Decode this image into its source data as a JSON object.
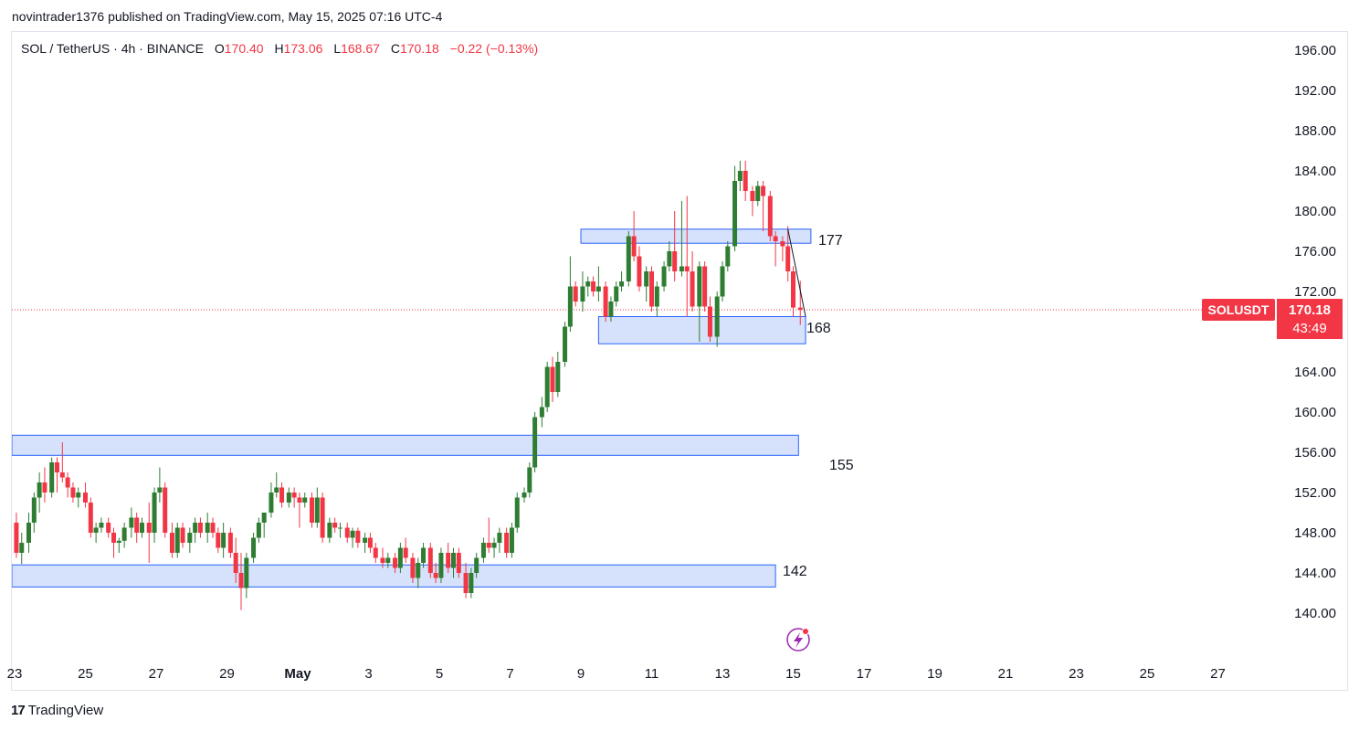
{
  "header": {
    "published": "novintrader1376 published on TradingView.com, May 15, 2025 07:16 UTC-4"
  },
  "legend": {
    "symbol": "SOL / TetherUS · 4h · BINANCE",
    "o_label": "O",
    "o_value": "170.40",
    "h_label": "H",
    "h_value": "173.06",
    "l_label": "L",
    "l_value": "168.67",
    "c_label": "C",
    "c_value": "170.18",
    "change": "−0.22 (−0.13%)"
  },
  "price_tag": {
    "symbol": "SOLUSDT",
    "price": "170.18",
    "countdown": "43:49"
  },
  "footer": {
    "brand": "TradingView",
    "logo": "17"
  },
  "colors": {
    "up": "#22ab94",
    "up_dark": "#2e7d32",
    "down": "#f23645",
    "zone_fill": "#d6e2fb",
    "zone_border": "#2962ff",
    "price_tag": "#f23645"
  },
  "chart_data": {
    "type": "candlestick",
    "symbol": "SOL / TetherUS",
    "interval": "4h",
    "exchange": "BINANCE",
    "ylim": [
      136,
      198
    ],
    "y_ticks": [
      "196.00",
      "192.00",
      "188.00",
      "184.00",
      "180.00",
      "176.00",
      "172.00",
      "164.00",
      "160.00",
      "156.00",
      "152.00",
      "148.00",
      "144.00",
      "140.00"
    ],
    "y_tick_values": [
      196,
      192,
      188,
      184,
      180,
      176,
      172,
      164,
      160,
      156,
      152,
      148,
      144,
      140
    ],
    "x_ticks": [
      "23",
      "25",
      "27",
      "29",
      "May",
      "3",
      "5",
      "7",
      "9",
      "11",
      "13",
      "15",
      "17",
      "19",
      "21",
      "23",
      "25",
      "27"
    ],
    "x_tick_days": [
      -7,
      -5,
      -3,
      -1,
      1,
      3,
      5,
      7,
      9,
      11,
      13,
      15,
      17,
      19,
      21,
      23,
      25,
      27
    ],
    "last_price": 170.18,
    "zones": [
      {
        "label": "177",
        "low": 176.8,
        "high": 178.2,
        "start_day": 9.0,
        "end_day": 15.5
      },
      {
        "label": "168",
        "low": 166.8,
        "high": 169.5,
        "start_day": 9.5,
        "end_day": 15.35
      },
      {
        "label": "155",
        "low": 155.7,
        "high": 157.7,
        "start_day": -8.0,
        "end_day": 15.15
      },
      {
        "label": "142",
        "low": 142.6,
        "high": 144.8,
        "start_day": -8.0,
        "end_day": 14.5
      }
    ],
    "trendline": {
      "from": [
        14.85,
        178.2
      ],
      "to": [
        15.35,
        169.5
      ]
    },
    "candles": [
      {
        "d": -7.95,
        "o": 150,
        "h": 152.5,
        "l": 149,
        "c": 152
      },
      {
        "d": -7.8,
        "o": 152,
        "h": 153,
        "l": 150.5,
        "c": 151
      },
      {
        "d": -7.6,
        "o": 151,
        "h": 154,
        "l": 150,
        "c": 153
      },
      {
        "d": -7.4,
        "o": 153,
        "h": 153.5,
        "l": 150,
        "c": 150.5
      },
      {
        "d": -7.25,
        "o": 150.5,
        "h": 152.5,
        "l": 148.5,
        "c": 152
      },
      {
        "d": -7.1,
        "o": 152,
        "h": 152.5,
        "l": 148,
        "c": 149
      },
      {
        "d": -6.95,
        "o": 149,
        "h": 150,
        "l": 145.5,
        "c": 146
      },
      {
        "d": -6.8,
        "o": 146,
        "h": 148,
        "l": 144.9,
        "c": 147
      },
      {
        "d": -6.6,
        "o": 147,
        "h": 150,
        "l": 146,
        "c": 149
      },
      {
        "d": -6.45,
        "o": 149,
        "h": 152,
        "l": 148,
        "c": 151.5
      },
      {
        "d": -6.3,
        "o": 151.5,
        "h": 154,
        "l": 150,
        "c": 153
      },
      {
        "d": -6.15,
        "o": 153,
        "h": 154.5,
        "l": 151,
        "c": 152
      },
      {
        "d": -5.95,
        "o": 152,
        "h": 155.5,
        "l": 151.5,
        "c": 155
      },
      {
        "d": -5.8,
        "o": 155,
        "h": 155.5,
        "l": 152,
        "c": 154
      },
      {
        "d": -5.65,
        "o": 154,
        "h": 157,
        "l": 153,
        "c": 153.5
      },
      {
        "d": -5.5,
        "o": 153.5,
        "h": 154,
        "l": 151.5,
        "c": 152.5
      },
      {
        "d": -5.35,
        "o": 152.5,
        "h": 153,
        "l": 151,
        "c": 151.5
      },
      {
        "d": -5.2,
        "o": 151.5,
        "h": 152.5,
        "l": 150.5,
        "c": 152
      },
      {
        "d": -5.0,
        "o": 152,
        "h": 153,
        "l": 150.5,
        "c": 151
      },
      {
        "d": -4.85,
        "o": 151,
        "h": 151.5,
        "l": 147.5,
        "c": 148
      },
      {
        "d": -4.7,
        "o": 148,
        "h": 149,
        "l": 147,
        "c": 148.5
      },
      {
        "d": -4.55,
        "o": 148.5,
        "h": 149.5,
        "l": 148,
        "c": 149
      },
      {
        "d": -4.35,
        "o": 149,
        "h": 149.5,
        "l": 147.5,
        "c": 148
      },
      {
        "d": -4.2,
        "o": 148,
        "h": 148.5,
        "l": 145.5,
        "c": 147
      },
      {
        "d": -4.05,
        "o": 147,
        "h": 147.5,
        "l": 146,
        "c": 147.2
      },
      {
        "d": -3.9,
        "o": 147.2,
        "h": 149,
        "l": 146.5,
        "c": 148.5
      },
      {
        "d": -3.7,
        "o": 148.5,
        "h": 150.5,
        "l": 147.5,
        "c": 149.5
      },
      {
        "d": -3.55,
        "o": 149.5,
        "h": 150,
        "l": 147,
        "c": 148
      },
      {
        "d": -3.4,
        "o": 148,
        "h": 149.5,
        "l": 147.5,
        "c": 149
      },
      {
        "d": -3.2,
        "o": 149,
        "h": 151,
        "l": 145,
        "c": 148
      },
      {
        "d": -3.05,
        "o": 148,
        "h": 152.5,
        "l": 147,
        "c": 152
      },
      {
        "d": -2.9,
        "o": 152,
        "h": 154.5,
        "l": 151,
        "c": 152.5
      },
      {
        "d": -2.75,
        "o": 152.5,
        "h": 153,
        "l": 147.5,
        "c": 148
      },
      {
        "d": -2.55,
        "o": 148,
        "h": 149,
        "l": 145.5,
        "c": 146
      },
      {
        "d": -2.4,
        "o": 146,
        "h": 149,
        "l": 145.5,
        "c": 148.5
      },
      {
        "d": -2.25,
        "o": 148.5,
        "h": 149,
        "l": 146.5,
        "c": 147
      },
      {
        "d": -2.05,
        "o": 147,
        "h": 148.5,
        "l": 146,
        "c": 148
      },
      {
        "d": -1.9,
        "o": 148,
        "h": 149.5,
        "l": 147,
        "c": 149
      },
      {
        "d": -1.75,
        "o": 149,
        "h": 149.5,
        "l": 147.5,
        "c": 148
      },
      {
        "d": -1.55,
        "o": 148,
        "h": 150,
        "l": 147,
        "c": 149
      },
      {
        "d": -1.4,
        "o": 149,
        "h": 149.5,
        "l": 147.5,
        "c": 148
      },
      {
        "d": -1.25,
        "o": 148,
        "h": 148.5,
        "l": 146,
        "c": 146.5
      },
      {
        "d": -1.1,
        "o": 146.5,
        "h": 149,
        "l": 145.5,
        "c": 148
      },
      {
        "d": -0.9,
        "o": 148,
        "h": 148.5,
        "l": 145.5,
        "c": 146
      },
      {
        "d": -0.75,
        "o": 146,
        "h": 147.5,
        "l": 143,
        "c": 144
      },
      {
        "d": -0.6,
        "o": 144,
        "h": 146,
        "l": 140.3,
        "c": 142.5
      },
      {
        "d": -0.45,
        "o": 142.5,
        "h": 146,
        "l": 141.5,
        "c": 145.5
      },
      {
        "d": -0.25,
        "o": 145.5,
        "h": 148,
        "l": 145,
        "c": 147.5
      },
      {
        "d": -0.1,
        "o": 147.5,
        "h": 149.5,
        "l": 147,
        "c": 149
      },
      {
        "d": 0.05,
        "o": 149,
        "h": 150,
        "l": 147.5,
        "c": 150
      },
      {
        "d": 0.25,
        "o": 150,
        "h": 153,
        "l": 149.5,
        "c": 152
      },
      {
        "d": 0.4,
        "o": 152,
        "h": 154,
        "l": 151.5,
        "c": 152.5
      },
      {
        "d": 0.55,
        "o": 152.5,
        "h": 153,
        "l": 150.5,
        "c": 151
      },
      {
        "d": 0.75,
        "o": 151,
        "h": 152.5,
        "l": 150.5,
        "c": 152
      },
      {
        "d": 0.9,
        "o": 152,
        "h": 152.5,
        "l": 150.5,
        "c": 151.5
      },
      {
        "d": 1.05,
        "o": 151.5,
        "h": 152,
        "l": 148.5,
        "c": 151
      },
      {
        "d": 1.2,
        "o": 151,
        "h": 152,
        "l": 150.5,
        "c": 151.5
      },
      {
        "d": 1.4,
        "o": 151.5,
        "h": 152,
        "l": 148.5,
        "c": 149
      },
      {
        "d": 1.55,
        "o": 149,
        "h": 152.5,
        "l": 148.5,
        "c": 151.5
      },
      {
        "d": 1.7,
        "o": 151.5,
        "h": 152,
        "l": 147,
        "c": 147.5
      },
      {
        "d": 1.9,
        "o": 147.5,
        "h": 149.5,
        "l": 147,
        "c": 149
      },
      {
        "d": 2.05,
        "o": 149,
        "h": 149.5,
        "l": 148,
        "c": 148.5
      },
      {
        "d": 2.2,
        "o": 148.5,
        "h": 149,
        "l": 147.5,
        "c": 148.5
      },
      {
        "d": 2.4,
        "o": 148.5,
        "h": 149,
        "l": 147,
        "c": 147.5
      },
      {
        "d": 2.55,
        "o": 147.5,
        "h": 148.5,
        "l": 146.5,
        "c": 148.2
      },
      {
        "d": 2.7,
        "o": 148.2,
        "h": 148.5,
        "l": 146.5,
        "c": 147
      },
      {
        "d": 2.9,
        "o": 147,
        "h": 148,
        "l": 146,
        "c": 147.5
      },
      {
        "d": 3.05,
        "o": 147.5,
        "h": 148,
        "l": 146,
        "c": 146.5
      },
      {
        "d": 3.2,
        "o": 146.5,
        "h": 147,
        "l": 145,
        "c": 145.5
      },
      {
        "d": 3.4,
        "o": 145.5,
        "h": 146.5,
        "l": 144.5,
        "c": 145
      },
      {
        "d": 3.55,
        "o": 145,
        "h": 146,
        "l": 144.5,
        "c": 145.5
      },
      {
        "d": 3.75,
        "o": 145.5,
        "h": 146,
        "l": 144,
        "c": 144.5
      },
      {
        "d": 3.9,
        "o": 144.5,
        "h": 147,
        "l": 144,
        "c": 146.5
      },
      {
        "d": 4.05,
        "o": 146.5,
        "h": 147.5,
        "l": 145,
        "c": 145.5
      },
      {
        "d": 4.25,
        "o": 145.5,
        "h": 146,
        "l": 143,
        "c": 143.5
      },
      {
        "d": 4.4,
        "o": 143.5,
        "h": 145.5,
        "l": 142.5,
        "c": 145
      },
      {
        "d": 4.55,
        "o": 145,
        "h": 147,
        "l": 144.5,
        "c": 146.5
      },
      {
        "d": 4.75,
        "o": 146.5,
        "h": 147,
        "l": 143.5,
        "c": 144
      },
      {
        "d": 4.9,
        "o": 144,
        "h": 145,
        "l": 143,
        "c": 143.5
      },
      {
        "d": 5.05,
        "o": 143.5,
        "h": 146.5,
        "l": 143,
        "c": 146
      },
      {
        "d": 5.25,
        "o": 146,
        "h": 147,
        "l": 144,
        "c": 144.5
      },
      {
        "d": 5.4,
        "o": 144.5,
        "h": 146.5,
        "l": 143.5,
        "c": 146
      },
      {
        "d": 5.55,
        "o": 146,
        "h": 146.5,
        "l": 143.5,
        "c": 144
      },
      {
        "d": 5.75,
        "o": 144,
        "h": 145,
        "l": 141.5,
        "c": 142
      },
      {
        "d": 5.9,
        "o": 142,
        "h": 144.5,
        "l": 141.5,
        "c": 144
      },
      {
        "d": 6.05,
        "o": 144,
        "h": 146,
        "l": 143.5,
        "c": 145.5
      },
      {
        "d": 6.25,
        "o": 145.5,
        "h": 147.5,
        "l": 145,
        "c": 147
      },
      {
        "d": 6.4,
        "o": 147,
        "h": 149.5,
        "l": 146,
        "c": 146.5
      },
      {
        "d": 6.55,
        "o": 146.5,
        "h": 147.5,
        "l": 145.5,
        "c": 147
      },
      {
        "d": 6.7,
        "o": 147,
        "h": 148.5,
        "l": 146,
        "c": 148
      },
      {
        "d": 6.9,
        "o": 148,
        "h": 148.5,
        "l": 145.5,
        "c": 146
      },
      {
        "d": 7.05,
        "o": 146,
        "h": 149,
        "l": 145.5,
        "c": 148.5
      },
      {
        "d": 7.2,
        "o": 148.5,
        "h": 152,
        "l": 148,
        "c": 151.5
      },
      {
        "d": 7.4,
        "o": 151.5,
        "h": 152.5,
        "l": 151,
        "c": 152
      },
      {
        "d": 7.55,
        "o": 152,
        "h": 155,
        "l": 151.5,
        "c": 154.5
      },
      {
        "d": 7.7,
        "o": 154.5,
        "h": 160,
        "l": 154,
        "c": 159.5
      },
      {
        "d": 7.9,
        "o": 159.5,
        "h": 161.5,
        "l": 158.5,
        "c": 160.5
      },
      {
        "d": 8.05,
        "o": 160.5,
        "h": 165,
        "l": 160,
        "c": 164.5
      },
      {
        "d": 8.2,
        "o": 164.5,
        "h": 165.5,
        "l": 161,
        "c": 162
      },
      {
        "d": 8.35,
        "o": 162,
        "h": 166,
        "l": 161.5,
        "c": 165
      },
      {
        "d": 8.55,
        "o": 165,
        "h": 169,
        "l": 164.5,
        "c": 168.5
      },
      {
        "d": 8.7,
        "o": 168.5,
        "h": 175.5,
        "l": 168,
        "c": 172.5
      },
      {
        "d": 8.85,
        "o": 172.5,
        "h": 173,
        "l": 170.5,
        "c": 171
      },
      {
        "d": 9.05,
        "o": 171,
        "h": 174,
        "l": 170,
        "c": 172.5
      },
      {
        "d": 9.2,
        "o": 172.5,
        "h": 173.5,
        "l": 171.5,
        "c": 173
      },
      {
        "d": 9.35,
        "o": 173,
        "h": 173.5,
        "l": 171.5,
        "c": 172
      },
      {
        "d": 9.5,
        "o": 172,
        "h": 174.5,
        "l": 171,
        "c": 172.5
      },
      {
        "d": 9.7,
        "o": 172.5,
        "h": 173,
        "l": 169,
        "c": 169.5
      },
      {
        "d": 9.85,
        "o": 169.5,
        "h": 171.5,
        "l": 169,
        "c": 171
      },
      {
        "d": 10.0,
        "o": 171,
        "h": 173,
        "l": 170.5,
        "c": 172.5
      },
      {
        "d": 10.15,
        "o": 172.5,
        "h": 174,
        "l": 172,
        "c": 173
      },
      {
        "d": 10.35,
        "o": 173,
        "h": 178,
        "l": 172.5,
        "c": 177.5
      },
      {
        "d": 10.5,
        "o": 177.5,
        "h": 180,
        "l": 175,
        "c": 175.5
      },
      {
        "d": 10.65,
        "o": 175.5,
        "h": 176.5,
        "l": 172,
        "c": 172.5
      },
      {
        "d": 10.85,
        "o": 172.5,
        "h": 174.5,
        "l": 171,
        "c": 174
      },
      {
        "d": 11.0,
        "o": 174,
        "h": 174.5,
        "l": 170,
        "c": 170.5
      },
      {
        "d": 11.15,
        "o": 170.5,
        "h": 173,
        "l": 169.5,
        "c": 172.5
      },
      {
        "d": 11.35,
        "o": 172.5,
        "h": 175,
        "l": 172,
        "c": 174.5
      },
      {
        "d": 11.5,
        "o": 174.5,
        "h": 177,
        "l": 174,
        "c": 176
      },
      {
        "d": 11.65,
        "o": 176,
        "h": 180,
        "l": 173,
        "c": 174
      },
      {
        "d": 11.85,
        "o": 174,
        "h": 181,
        "l": 173.5,
        "c": 174.5
      },
      {
        "d": 12.0,
        "o": 174.5,
        "h": 181.5,
        "l": 169.5,
        "c": 174
      },
      {
        "d": 12.15,
        "o": 174,
        "h": 176,
        "l": 170,
        "c": 170.5
      },
      {
        "d": 12.35,
        "o": 170.5,
        "h": 175,
        "l": 167,
        "c": 174.5
      },
      {
        "d": 12.5,
        "o": 174.5,
        "h": 175,
        "l": 170,
        "c": 170.5
      },
      {
        "d": 12.65,
        "o": 170.5,
        "h": 171.5,
        "l": 167,
        "c": 167.5
      },
      {
        "d": 12.85,
        "o": 167.5,
        "h": 172,
        "l": 166.5,
        "c": 171.5
      },
      {
        "d": 13.0,
        "o": 171.5,
        "h": 175,
        "l": 171,
        "c": 174.5
      },
      {
        "d": 13.15,
        "o": 174.5,
        "h": 177,
        "l": 174,
        "c": 176.5
      },
      {
        "d": 13.35,
        "o": 176.5,
        "h": 184.5,
        "l": 176,
        "c": 183
      },
      {
        "d": 13.5,
        "o": 183,
        "h": 185,
        "l": 182,
        "c": 184
      },
      {
        "d": 13.65,
        "o": 184,
        "h": 185,
        "l": 181,
        "c": 182
      },
      {
        "d": 13.85,
        "o": 182,
        "h": 182.5,
        "l": 179.5,
        "c": 181
      },
      {
        "d": 14.0,
        "o": 181,
        "h": 183,
        "l": 180.5,
        "c": 182.5
      },
      {
        "d": 14.15,
        "o": 182.5,
        "h": 183,
        "l": 178,
        "c": 181.5
      },
      {
        "d": 14.35,
        "o": 181.5,
        "h": 182,
        "l": 177,
        "c": 177.5
      },
      {
        "d": 14.5,
        "o": 177.5,
        "h": 178,
        "l": 174.5,
        "c": 177
      },
      {
        "d": 14.7,
        "o": 177,
        "h": 177.5,
        "l": 175,
        "c": 176.5
      },
      {
        "d": 14.85,
        "o": 176.5,
        "h": 178.5,
        "l": 173,
        "c": 174
      },
      {
        "d": 15.0,
        "o": 174,
        "h": 174.5,
        "l": 169.5,
        "c": 170.4
      },
      {
        "d": 15.2,
        "o": 170.4,
        "h": 173.06,
        "l": 168.67,
        "c": 170.18
      }
    ]
  }
}
